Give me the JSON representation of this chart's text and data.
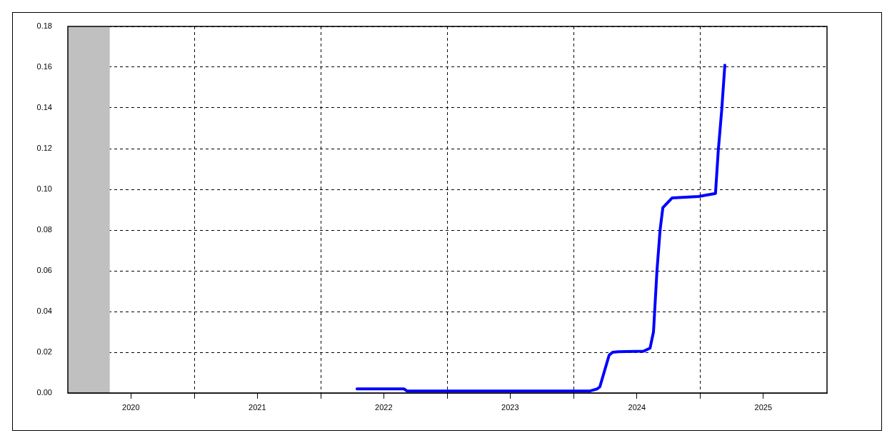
{
  "chart_data": {
    "type": "line",
    "x": [
      "2022-04-15",
      "2022-08-29",
      "2022-09-06",
      "2024-02-17",
      "2024-03-08",
      "2024-03-16",
      "2024-04-12",
      "2024-04-22",
      "2024-05-08",
      "2024-07-20",
      "2024-08-08",
      "2024-08-18",
      "2024-08-28",
      "2024-09-06",
      "2024-09-14",
      "2024-10-11",
      "2024-12-26",
      "2025-02-13",
      "2025-02-21",
      "2025-03-03",
      "2025-03-12"
    ],
    "series": [
      {
        "color": "#0000ff",
        "values": [
          0.002,
          0.002,
          0.001,
          0.001,
          0.002,
          0.003,
          0.0186,
          0.02,
          0.0203,
          0.0205,
          0.022,
          0.03,
          0.06,
          0.08,
          0.091,
          0.0958,
          0.0965,
          0.098,
          0.119,
          0.139,
          0.161
        ]
      }
    ],
    "xlim": [
      "2020-01-01",
      "2026-01-01"
    ],
    "xticks": [
      {
        "value": "2020-07-01",
        "label": "2020"
      },
      {
        "value": "2021-01-01",
        "label": null
      },
      {
        "value": "2021-07-01",
        "label": "2021"
      },
      {
        "value": "2022-01-01",
        "label": null
      },
      {
        "value": "2022-07-01",
        "label": "2022"
      },
      {
        "value": "2023-01-01",
        "label": null
      },
      {
        "value": "2023-07-01",
        "label": "2023"
      },
      {
        "value": "2024-01-01",
        "label": null
      },
      {
        "value": "2024-07-01",
        "label": "2024"
      },
      {
        "value": "2025-01-01",
        "label": null
      },
      {
        "value": "2025-07-01",
        "label": "2025"
      }
    ],
    "ylim": [
      0,
      0.18
    ],
    "yticks": [
      {
        "value": 0,
        "label": "0.00"
      },
      {
        "value": 0.02,
        "label": "0.02"
      },
      {
        "value": 0.04,
        "label": "0.04"
      },
      {
        "value": 0.06,
        "label": "0.06"
      },
      {
        "value": 0.08,
        "label": "0.08"
      },
      {
        "value": 0.1,
        "label": "0.10"
      },
      {
        "value": 0.12,
        "label": "0.12"
      },
      {
        "value": 0.14,
        "label": "0.14"
      },
      {
        "value": 0.16,
        "label": "0.16"
      },
      {
        "value": 0.18,
        "label": "0.18"
      }
    ],
    "bands": [
      {
        "axis": "x",
        "from": "2020-01-01",
        "to": "2020-05-01",
        "color": "#c0c0c0"
      }
    ],
    "grid": true,
    "marker": "none",
    "line_style": "solid"
  }
}
